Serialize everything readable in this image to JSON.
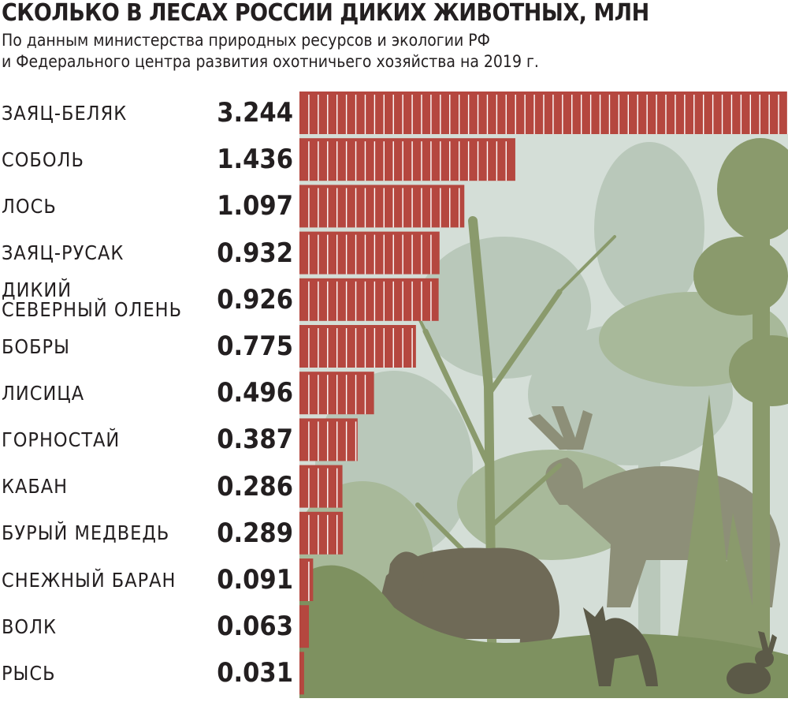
{
  "header": {
    "title": "СКОЛЬКО В ЛЕСАХ РОССИИ ДИКИХ ЖИВОТНЫХ, МЛН",
    "subtitle_lines": [
      "По данным министерства природных ресурсов и экологии РФ",
      "и Федерального центра развития охотничьего хозяйства на 2019 г."
    ]
  },
  "colors": {
    "bar": "#b5473f",
    "bar_divider": "#ffffff",
    "scene_fog": "#d4ded7",
    "scene_tree": "#8a9a6c",
    "scene_animal": "#77705f"
  },
  "chart_data": {
    "type": "bar",
    "orientation": "horizontal",
    "title": "СКОЛЬКО В ЛЕСАХ РОССИИ ДИКИХ ЖИВОТНЫХ, МЛН",
    "xlabel": "",
    "ylabel": "",
    "grid": false,
    "legend": "none",
    "xlim": [
      0,
      3.25
    ],
    "categories": [
      "ЗАЯЦ-БЕЛЯК",
      "СОБОЛЬ",
      "ЛОСЬ",
      "ЗАЯЦ-РУСАК",
      "ДИКИЙ СЕВЕРНЫЙ ОЛЕНЬ",
      "БОБРЫ",
      "ЛИСИЦА",
      "ГОРНОСТАЙ",
      "КАБАН",
      "БУРЫЙ МЕДВЕДЬ",
      "СНЕЖНЫЙ БАРАН",
      "ВОЛК",
      "РЫСЬ"
    ],
    "category_lines": [
      [
        "ЗАЯЦ-БЕЛЯК"
      ],
      [
        "СОБОЛЬ"
      ],
      [
        "ЛОСЬ"
      ],
      [
        "ЗАЯЦ-РУСАК"
      ],
      [
        "ДИКИЙ",
        "СЕВЕРНЫЙ ОЛЕНЬ"
      ],
      [
        "БОБРЫ"
      ],
      [
        "ЛИСИЦА"
      ],
      [
        "ГОРНОСТАЙ"
      ],
      [
        "КАБАН"
      ],
      [
        "БУРЫЙ МЕДВЕДЬ"
      ],
      [
        "СНЕЖНЫЙ БАРАН"
      ],
      [
        "ВОЛК"
      ],
      [
        "РЫСЬ"
      ]
    ],
    "values": [
      3.244,
      1.436,
      1.097,
      0.932,
      0.926,
      0.775,
      0.496,
      0.387,
      0.286,
      0.289,
      0.091,
      0.063,
      0.031
    ],
    "value_labels": [
      "3.244",
      "1.436",
      "1.097",
      "0.932",
      "0.926",
      "0.775",
      "0.496",
      "0.387",
      "0.286",
      "0.289",
      "0.091",
      "0.063",
      "0.031"
    ],
    "segment_value": 0.0625
  }
}
